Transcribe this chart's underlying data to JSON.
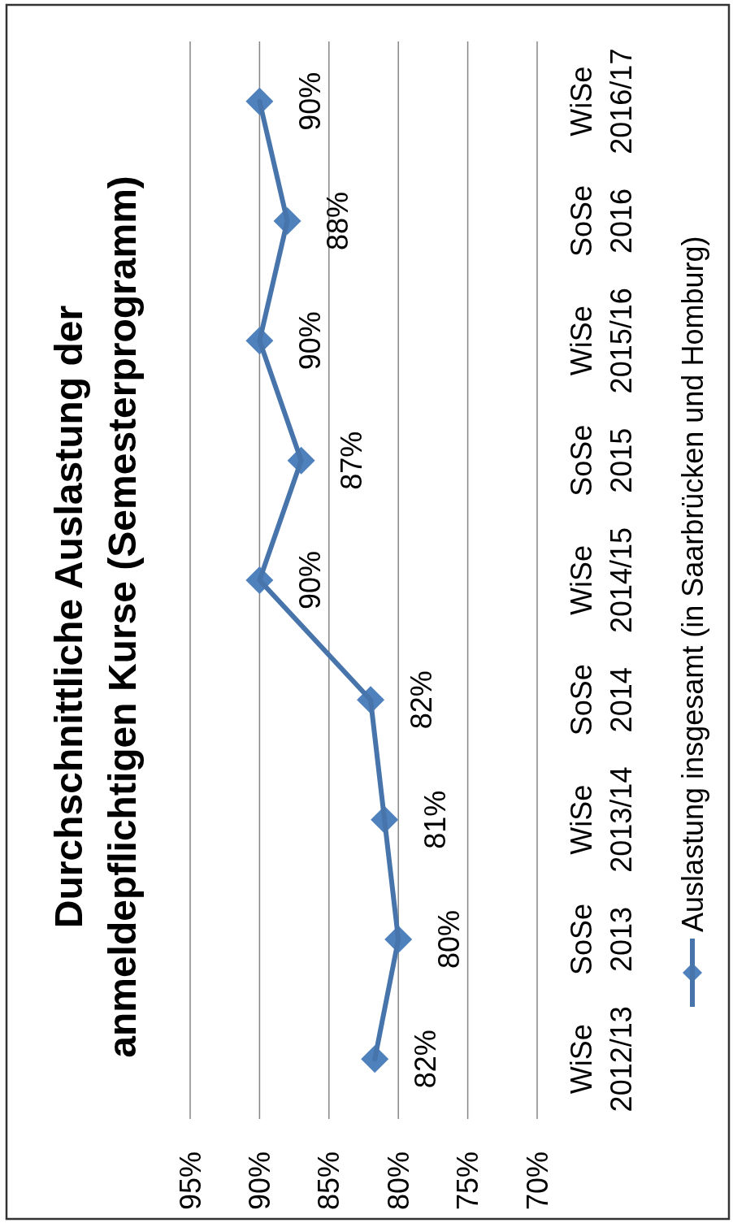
{
  "chart_data": {
    "type": "line",
    "orientation": "horizontal",
    "title": "Durchschnittliche Auslastung der anmeldepflichtigen Kurse (Semesterprogramm)",
    "categories": [
      "WiSe 2016/17",
      "SoSe 2016",
      "WiSe 2015/16",
      "SoSe 2015",
      "WiSe 2014/15",
      "SoSe 2014",
      "WiSe 2013/14",
      "SoSe 2013",
      "WiSe 2012/13"
    ],
    "series": [
      {
        "name": "Auslastung insgesamt (in Saarbrücken und Homburg)",
        "color": "#4f81bd",
        "values": [
          90,
          88,
          90,
          87,
          90,
          82,
          81,
          80,
          81.7
        ],
        "value_labels": [
          "90%",
          "88%",
          "90%",
          "87%",
          "90%",
          "82%",
          "81%",
          "80%",
          "82%"
        ]
      }
    ],
    "xlim": [
      95,
      70
    ],
    "xticks": [
      {
        "value": 95,
        "label": "95%"
      },
      {
        "value": 90,
        "label": "90%"
      },
      {
        "value": 85,
        "label": "85%"
      },
      {
        "value": 80,
        "label": "80%"
      },
      {
        "value": 75,
        "label": "75%"
      },
      {
        "value": 70,
        "label": "70%"
      }
    ],
    "grid": "x",
    "legend": "right",
    "marker": "diamond",
    "line_style": "solid"
  }
}
